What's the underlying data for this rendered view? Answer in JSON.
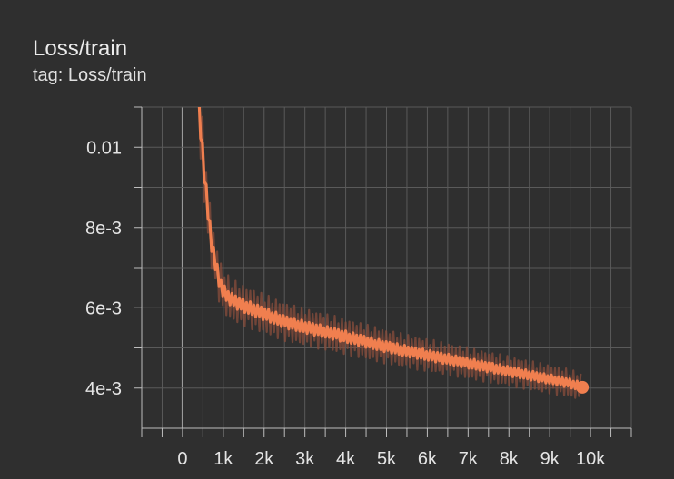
{
  "card": {
    "title": "Loss/train",
    "subtitle": "tag: Loss/train"
  },
  "chart_data": {
    "type": "line",
    "title": "Loss/train",
    "subtitle": "tag: Loss/train",
    "xlabel": "",
    "ylabel": "",
    "xlim": [
      -1000,
      11000
    ],
    "ylim": [
      0.003,
      0.011
    ],
    "x_ticks": [
      0,
      1000,
      2000,
      3000,
      4000,
      5000,
      6000,
      7000,
      8000,
      9000,
      10000
    ],
    "x_tick_labels": [
      "0",
      "1k",
      "2k",
      "3k",
      "4k",
      "5k",
      "6k",
      "7k",
      "8k",
      "9k",
      "10k"
    ],
    "y_ticks": [
      0.004,
      0.006,
      0.008,
      0.01
    ],
    "y_tick_labels": [
      "4e-3",
      "6e-3",
      "8e-3",
      "0.01"
    ],
    "grid": true,
    "colors": {
      "line": "#f07f4f",
      "raw": "#8a4e3c",
      "grid": "#5a5a5a",
      "zero_line": "#9a9a9a",
      "axis": "#bdbdbd"
    },
    "series": [
      {
        "x": [
          400,
          500,
          600,
          700,
          800,
          900,
          1000,
          1200,
          1500,
          2000,
          2500,
          3000,
          3500,
          4000,
          4500,
          5000,
          5500,
          6000,
          6500,
          7000,
          7500,
          8000,
          8500,
          9000,
          9500,
          9800
        ],
        "values": [
          0.011,
          0.0098,
          0.0086,
          0.0077,
          0.0071,
          0.0067,
          0.0064,
          0.0062,
          0.00605,
          0.00585,
          0.00565,
          0.00552,
          0.0054,
          0.00528,
          0.00515,
          0.00503,
          0.00492,
          0.00482,
          0.00472,
          0.00462,
          0.00452,
          0.00442,
          0.00432,
          0.00422,
          0.00412,
          0.00402
        ]
      }
    ]
  }
}
